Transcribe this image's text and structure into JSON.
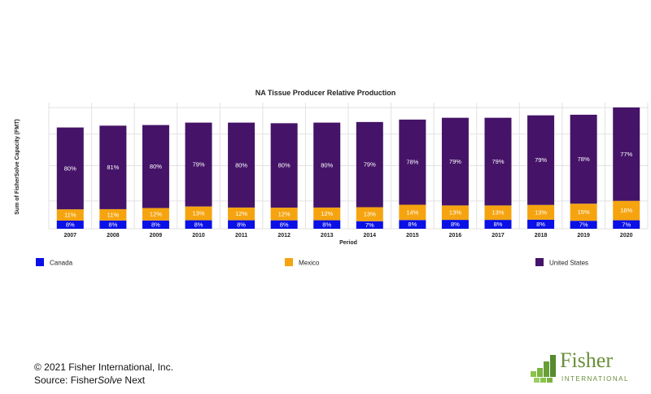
{
  "colors": {
    "Canada": "#0a10e6",
    "Mexico": "#f5a410",
    "United States": "#451468",
    "grid": "#e2e2e2",
    "logo_green": "#7cb342"
  },
  "chart_data": {
    "type": "bar",
    "stacked": true,
    "title": "NA Tissue Producer Relative Production",
    "xlabel": "Period",
    "ylabel": "Sum of FisherSolve Capacity (FMT)",
    "categories": [
      "2007",
      "2008",
      "2009",
      "2010",
      "2011",
      "2012",
      "2013",
      "2014",
      "2015",
      "2016",
      "2017",
      "2018",
      "2019",
      "2020"
    ],
    "totals_relative": [
      0.835,
      0.85,
      0.855,
      0.875,
      0.875,
      0.87,
      0.875,
      0.88,
      0.9,
      0.915,
      0.915,
      0.935,
      0.94,
      1.0
    ],
    "series": [
      {
        "name": "Canada",
        "values": [
          8,
          8,
          8,
          8,
          8,
          8,
          8,
          7,
          8,
          8,
          8,
          8,
          7,
          7
        ],
        "labels": [
          "8%",
          "8%",
          "8%",
          "8%",
          "8%",
          "8%",
          "8%",
          "7%",
          "8%",
          "8%",
          "8%",
          "8%",
          "7%",
          "7%"
        ]
      },
      {
        "name": "Mexico",
        "values": [
          11,
          11,
          12,
          13,
          12,
          12,
          12,
          13,
          14,
          13,
          13,
          13,
          15,
          16
        ],
        "labels": [
          "11%",
          "11%",
          "12%",
          "13%",
          "12%",
          "12%",
          "12%",
          "13%",
          "14%",
          "13%",
          "13%",
          "13%",
          "15%",
          "16%"
        ]
      },
      {
        "name": "United States",
        "values": [
          80,
          81,
          80,
          79,
          80,
          80,
          80,
          79,
          78,
          79,
          79,
          79,
          78,
          77
        ],
        "labels": [
          "80%",
          "81%",
          "80%",
          "79%",
          "80%",
          "80%",
          "80%",
          "79%",
          "78%",
          "79%",
          "79%",
          "79%",
          "78%",
          "77%"
        ]
      }
    ],
    "grid": true,
    "legend_position": "bottom"
  },
  "footer": {
    "copyright": "© 2021 Fisher International, Inc.",
    "source_prefix": "Source: Fisher",
    "source_italic": "Solve",
    "source_suffix": " Next"
  },
  "logo": {
    "name": "Fisher",
    "tagline": "INTERNATIONAL",
    "icon": "fisher-logo-squares-icon"
  }
}
